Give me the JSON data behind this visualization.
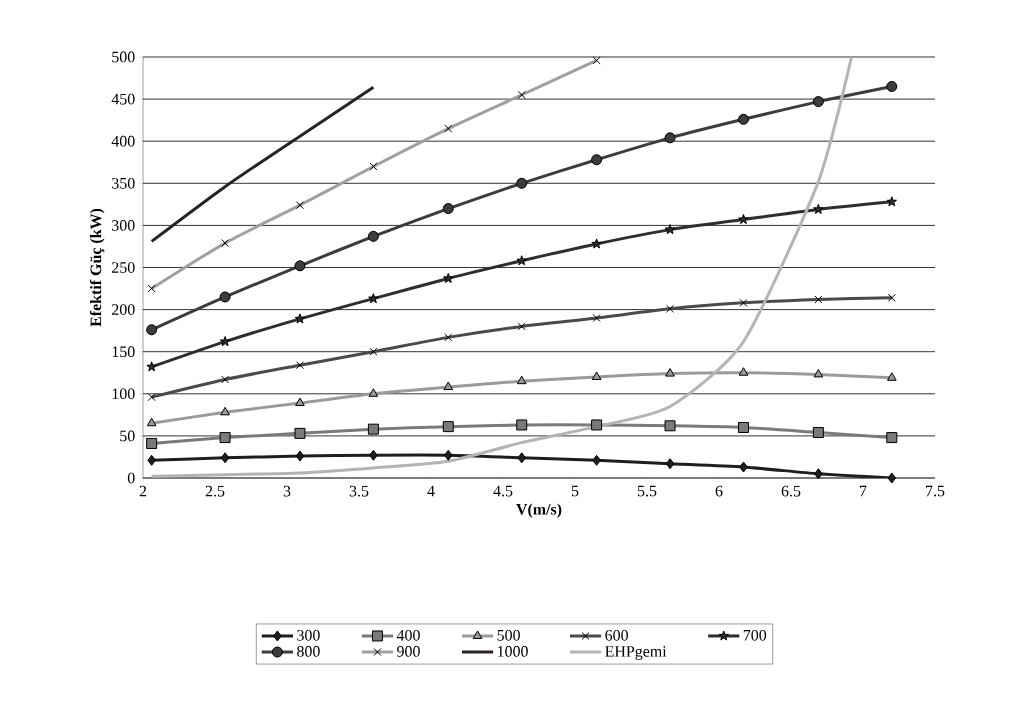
{
  "chart_data": {
    "type": "line",
    "xlabel": "V(m/s)",
    "ylabel": "Efektif Güç (kW)",
    "xlim": [
      2,
      7.5
    ],
    "xticks": [
      2,
      2.5,
      3,
      3.5,
      4,
      4.5,
      5,
      5.5,
      6,
      6.5,
      7,
      7.5
    ],
    "ylim": [
      0,
      500
    ],
    "yticks": [
      0,
      50,
      100,
      150,
      200,
      250,
      300,
      350,
      400,
      450,
      500
    ],
    "grid": "y",
    "legend": "bottom",
    "line_style": "solid",
    "x": [
      2.06,
      2.57,
      3.09,
      3.6,
      4.12,
      4.63,
      5.15,
      5.66,
      6.17,
      6.69,
      7.2
    ],
    "series": [
      {
        "name": "300",
        "color": "#1e1e1e",
        "marker": "diamond",
        "values": [
          21,
          24,
          26,
          27,
          27,
          24,
          21,
          17,
          13,
          5,
          0
        ]
      },
      {
        "name": "400",
        "color": "#7a7a7a",
        "marker": "square",
        "values": [
          41,
          48,
          53,
          58,
          61,
          63,
          63,
          62,
          60,
          54,
          48
        ]
      },
      {
        "name": "500",
        "color": "#9a9a9a",
        "marker": "triangle",
        "values": [
          65,
          78,
          89,
          100,
          108,
          115,
          120,
          124,
          125,
          123,
          119
        ]
      },
      {
        "name": "600",
        "color": "#4a4a4a",
        "marker": "cross",
        "values": [
          96,
          117,
          134,
          150,
          167,
          180,
          190,
          201,
          208,
          212,
          214
        ]
      },
      {
        "name": "700",
        "color": "#2e2e2e",
        "marker": "star",
        "values": [
          132,
          162,
          189,
          213,
          237,
          258,
          278,
          295,
          307,
          319,
          328
        ]
      },
      {
        "name": "800",
        "color": "#3c3c3c",
        "marker": "circle",
        "values": [
          176,
          215,
          252,
          287,
          320,
          350,
          378,
          404,
          426,
          447,
          465
        ]
      },
      {
        "name": "900",
        "color": "#a0a0a0",
        "marker": "cross",
        "values": [
          225,
          279,
          324,
          370,
          415,
          455,
          496,
          null,
          null,
          null,
          null
        ]
      },
      {
        "name": "1000",
        "color": "#2a2222",
        "marker": "none",
        "values": [
          281,
          346,
          406,
          464,
          null,
          null,
          null,
          null,
          null,
          null,
          null
        ]
      },
      {
        "name": "EHPgemi",
        "color": "#b4b4b4",
        "marker": "none",
        "x": [
          2.06,
          2.57,
          3.09,
          3.6,
          4.12,
          4.63,
          5.15,
          5.66,
          6.17,
          6.69,
          6.92
        ],
        "values": [
          2,
          4,
          6,
          12,
          20,
          42,
          61,
          85,
          162,
          352,
          500
        ]
      }
    ]
  }
}
